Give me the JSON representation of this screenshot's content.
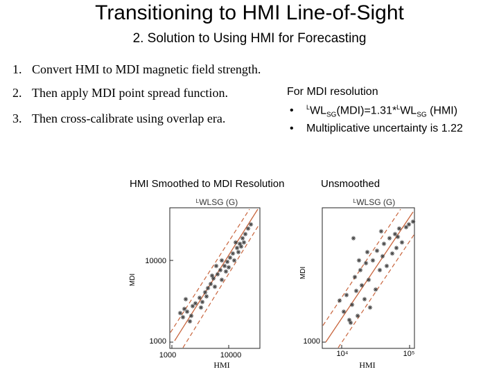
{
  "title": "Transitioning to HMI Line-of-Sight",
  "subtitle": "2. Solution to Using HMI for Forecasting",
  "steps": [
    {
      "num": "1.",
      "text": "Convert HMI to MDI magnetic field strength."
    },
    {
      "num": "2.",
      "text": "Then apply MDI point spread function."
    },
    {
      "num": "3.",
      "text": "Then cross-calibrate using overlap era."
    }
  ],
  "mdi_resolution": {
    "heading": "For MDI resolution",
    "bullet_1": {
      "marker": "•",
      "sup": "L",
      "a": "WL",
      "sub_a": "SG",
      "mid": "(MDI)=1.31*",
      "sup2": "L",
      "b": "WL",
      "sub_b": "SG",
      "end": " (HMI)"
    },
    "bullet_2": {
      "marker": "•",
      "text": "Multiplicative uncertainty is 1.22"
    }
  },
  "plots": {
    "left_label": "HMI Smoothed to MDI Resolution",
    "right_label": "Unsmoothed",
    "left": {
      "top_label": "ᴸWLSG (G)",
      "y_label": "MDI",
      "x_label": "HMI",
      "y_ticks": [
        "10000",
        "1000"
      ],
      "x_ticks": [
        "1000",
        "10000"
      ]
    },
    "right": {
      "top_label": "ᴸWLSG (G)",
      "y_label": "MDI",
      "x_label": "HMI",
      "y_ticks": [
        "1000"
      ],
      "x_ticks": [
        "10⁴",
        "10⁵"
      ]
    }
  },
  "colors": {
    "fit_line": "#c8643c",
    "points": "#444444"
  }
}
